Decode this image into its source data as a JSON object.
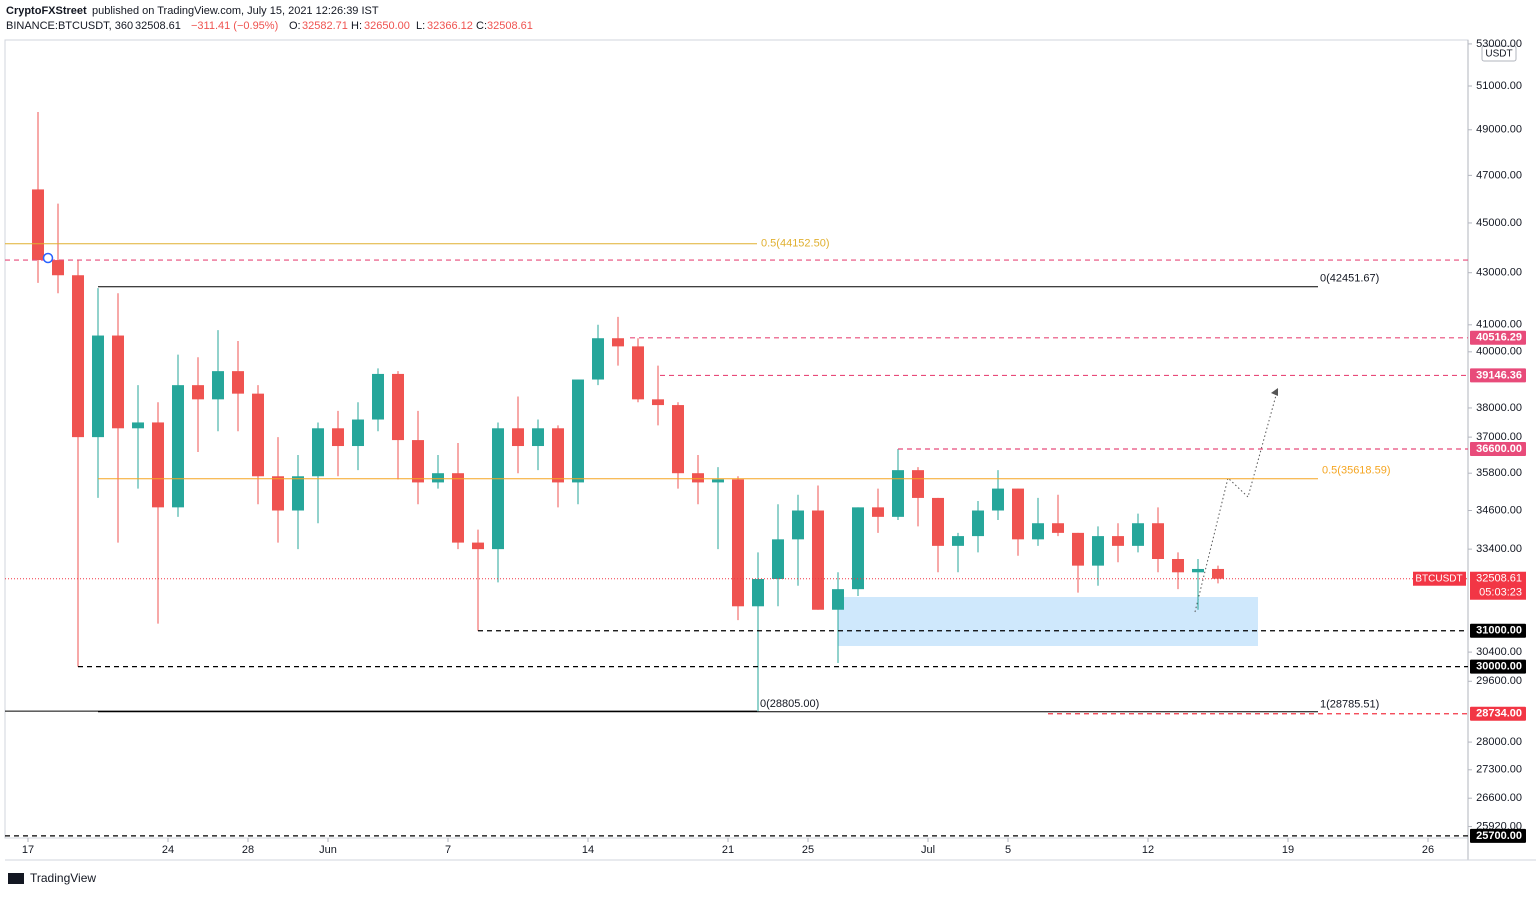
{
  "header": {
    "author": "CryptoFXStreet",
    "published": "published on TradingView.com, July 15, 2021 12:26:39 IST",
    "symbol": "BINANCE:BTCUSDT, 360",
    "last": "32508.61",
    "change": "−311.41 (−0.95%)",
    "o_label": "O:",
    "open": "32582.71",
    "h_label": "H:",
    "high": "32650.00",
    "l_label": "L:",
    "low": "32366.12",
    "c_label": "C:",
    "close": "32508.61"
  },
  "footer": "TradingView",
  "chart_data": {
    "type": "candlestick",
    "currency": "USDT",
    "log_scale": true,
    "up_color": "#26a69a",
    "down_color": "#ef5350",
    "x": [
      "05-17",
      "05-18",
      "05-19",
      "05-20",
      "05-21",
      "05-22",
      "05-23",
      "05-24",
      "05-25",
      "05-26",
      "05-27",
      "05-28",
      "05-29",
      "05-30",
      "05-31",
      "06-01",
      "06-02",
      "06-03",
      "06-04",
      "06-05",
      "06-06",
      "06-07",
      "06-08",
      "06-09",
      "06-10",
      "06-11",
      "06-12",
      "06-13",
      "06-14",
      "06-15",
      "06-16",
      "06-17",
      "06-18",
      "06-19",
      "06-20",
      "06-21",
      "06-22",
      "06-23",
      "06-24",
      "06-25",
      "06-26",
      "06-27",
      "06-28",
      "06-29",
      "06-30",
      "07-01",
      "07-02",
      "07-03",
      "07-04",
      "07-05",
      "07-06",
      "07-07",
      "07-08",
      "07-09",
      "07-10",
      "07-11",
      "07-12",
      "07-13",
      "07-14",
      "07-15"
    ],
    "open": [
      46400,
      43500,
      42900,
      37000,
      40600,
      37300,
      37500,
      34700,
      38800,
      38300,
      39300,
      38500,
      35700,
      34600,
      35700,
      37300,
      36700,
      37600,
      39200,
      36900,
      35500,
      35800,
      33600,
      33400,
      37300,
      36700,
      37300,
      35500,
      39000,
      40500,
      40200,
      38300,
      38100,
      35800,
      35500,
      35600,
      31700,
      32500,
      33700,
      34600,
      31600,
      32200,
      34700,
      34400,
      35900,
      35000,
      33500,
      33800,
      34600,
      35300,
      33700,
      34200,
      33900,
      32900,
      33800,
      33500,
      34200,
      33100,
      32700,
      32800
    ],
    "high": [
      49800,
      45800,
      43500,
      42400,
      42200,
      38800,
      38200,
      39900,
      39800,
      40800,
      40400,
      38800,
      37000,
      36400,
      37500,
      37900,
      38200,
      39400,
      39300,
      37900,
      36400,
      36800,
      34000,
      37500,
      38400,
      37600,
      37400,
      39000,
      41000,
      41300,
      40500,
      39500,
      38200,
      36400,
      36000,
      35700,
      33300,
      34800,
      35100,
      35400,
      32700,
      34700,
      35300,
      36600,
      36000,
      35000,
      33900,
      34900,
      35900,
      35300,
      35000,
      35100,
      33900,
      34100,
      34200,
      34500,
      34700,
      33300,
      33100,
      32900
    ],
    "low": [
      42600,
      42200,
      30000,
      35000,
      33600,
      35300,
      31200,
      34400,
      36500,
      37200,
      37200,
      34800,
      33600,
      33400,
      34200,
      35700,
      35900,
      37200,
      35600,
      34800,
      35300,
      33400,
      31000,
      32400,
      35800,
      35900,
      34700,
      34800,
      38800,
      39500,
      38200,
      37400,
      35300,
      34800,
      33400,
      31300,
      28800,
      31700,
      32300,
      31600,
      30100,
      32000,
      33900,
      34300,
      34100,
      32700,
      32700,
      33300,
      34300,
      33200,
      33500,
      33800,
      32100,
      32300,
      33000,
      33300,
      32700,
      32200,
      31600,
      32370
    ],
    "close": [
      43500,
      42900,
      37000,
      40600,
      37300,
      37500,
      34700,
      38800,
      38300,
      39300,
      38500,
      35700,
      34600,
      35700,
      37300,
      36700,
      37600,
      39200,
      36900,
      35500,
      35800,
      33600,
      33400,
      37300,
      36700,
      37300,
      35500,
      39000,
      40500,
      40200,
      38300,
      38100,
      35800,
      35500,
      35600,
      31700,
      32500,
      33700,
      34600,
      31600,
      32200,
      34700,
      34400,
      35900,
      35000,
      33500,
      33800,
      34600,
      35300,
      33700,
      34200,
      33900,
      32900,
      33800,
      33500,
      34200,
      33100,
      32700,
      32800,
      32508.61
    ],
    "ylim": [
      25650,
      53190
    ],
    "yticks": [
      {
        "value": 53000,
        "label": "53000.00"
      },
      {
        "value": 51000,
        "label": "51000.00"
      },
      {
        "value": 49000,
        "label": "49000.00"
      },
      {
        "value": 47000,
        "label": "47000.00"
      },
      {
        "value": 45000,
        "label": "45000.00"
      },
      {
        "value": 43000,
        "label": "43000.00"
      },
      {
        "value": 41000,
        "label": "41000.00"
      },
      {
        "value": 40000,
        "label": "40000.00"
      },
      {
        "value": 38000,
        "label": "38000.00"
      },
      {
        "value": 37000,
        "label": "37000.00"
      },
      {
        "value": 35800,
        "label": "35800.00"
      },
      {
        "value": 34600,
        "label": "34600.00"
      },
      {
        "value": 33400,
        "label": "33400.00"
      },
      {
        "value": 30400,
        "label": "30400.00"
      },
      {
        "value": 29600,
        "label": "29600.00"
      },
      {
        "value": 28000,
        "label": "28000.00"
      },
      {
        "value": 27300,
        "label": "27300.00"
      },
      {
        "value": 26600,
        "label": "26600.00"
      },
      {
        "value": 25920,
        "label": "25920.00"
      }
    ],
    "xticks": [
      {
        "value": "05-17",
        "label": "17"
      },
      {
        "value": "05-24",
        "label": "24"
      },
      {
        "value": "05-28",
        "label": "28"
      },
      {
        "value": "06-01",
        "label": "Jun"
      },
      {
        "value": "06-07",
        "label": "7"
      },
      {
        "value": "06-14",
        "label": "14"
      },
      {
        "value": "06-21",
        "label": "21"
      },
      {
        "value": "06-25",
        "label": "25"
      },
      {
        "value": "07-01",
        "label": "Jul"
      },
      {
        "value": "07-05",
        "label": "5"
      },
      {
        "value": "07-12",
        "label": "12"
      },
      {
        "value": "07-19",
        "label": "19"
      },
      {
        "value": "07-26",
        "label": "26"
      }
    ],
    "levels": [
      {
        "value": 44152.5,
        "label": "0.5(44152.50)",
        "color": "#e0b030",
        "style": "solid"
      },
      {
        "value": 43500,
        "color": "#e84b7a",
        "style": "dashed"
      },
      {
        "value": 42451.67,
        "label": "0(42451.67)",
        "color": "#000000",
        "style": "solid"
      },
      {
        "value": 40516.29,
        "price_label": "40516.29",
        "color": "#e84b7a",
        "style": "dashed"
      },
      {
        "value": 39146.36,
        "price_label": "39146.36",
        "color": "#e84b7a",
        "style": "dashed"
      },
      {
        "value": 36600,
        "price_label": "36600.00",
        "color": "#e84b7a",
        "style": "dashed"
      },
      {
        "value": 35618.59,
        "label": "0.5(35618.59)",
        "color": "#f5a623",
        "style": "solid"
      },
      {
        "value": 31000,
        "price_label": "31000.00",
        "color": "#000000",
        "style": "dashed"
      },
      {
        "value": 30000,
        "price_label": "30000.00",
        "color": "#000000",
        "style": "dashed"
      },
      {
        "value": 28805,
        "label": "0(28805.00)",
        "color": "#000000",
        "style": "solid"
      },
      {
        "value": 28785.51,
        "label": "1(28785.51)",
        "color": "#000000",
        "style": "solid"
      },
      {
        "value": 28734,
        "price_label": "28734.00",
        "color": "#f23645",
        "style": "dashed"
      },
      {
        "value": 25700,
        "price_label": "25700.00",
        "color": "#000000",
        "style": "dashed"
      }
    ],
    "last_price": {
      "name": "BTCUSDT",
      "value": 32508.61,
      "label": "32508.61",
      "countdown": "05:03:23",
      "color": "#f23645"
    }
  }
}
